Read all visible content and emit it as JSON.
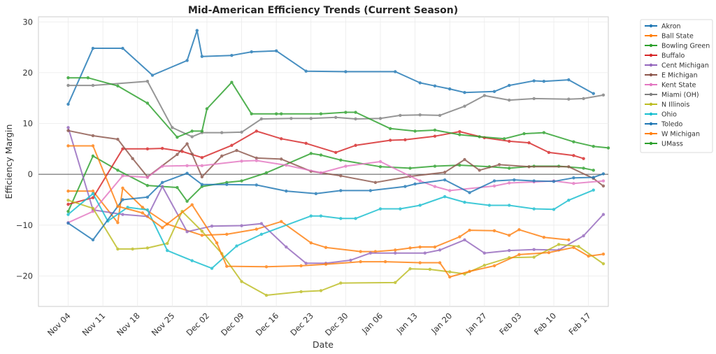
{
  "chart_data": {
    "type": "line",
    "title": "Mid-American Efficiency Trends (Current Season)",
    "xlabel": "Date",
    "ylabel": "Efficiency Margin",
    "x_type": "date",
    "x_range_days_from_nov04": [
      -6,
      109
    ],
    "x_ticks": [
      "Nov 04",
      "Nov 11",
      "Nov 18",
      "Nov 25",
      "Dec 02",
      "Dec 09",
      "Dec 16",
      "Dec 23",
      "Dec 30",
      "Jan 06",
      "Jan 13",
      "Jan 20",
      "Jan 27",
      "Feb 03",
      "Feb 10",
      "Feb 17"
    ],
    "y_ticks": [
      -20,
      -10,
      0,
      10,
      20,
      30
    ],
    "ylim": [
      -26,
      31
    ],
    "grid": true,
    "zero_line": true,
    "legend_position": "outside-top-right",
    "x_note": "x values are days since Nov 04",
    "series": [
      {
        "name": "Akron",
        "color": "#1f77b4",
        "x": [
          0,
          5,
          11,
          17,
          24,
          26,
          27,
          33,
          37,
          42,
          48,
          56,
          66,
          71,
          74,
          77,
          80,
          86,
          89,
          94,
          96,
          101,
          106
        ],
        "y": [
          13.8,
          24.8,
          24.8,
          19.5,
          22.4,
          28.3,
          23.2,
          23.4,
          24.1,
          24.3,
          20.3,
          20.2,
          20.2,
          18.0,
          17.4,
          16.8,
          16.1,
          16.3,
          17.5,
          18.4,
          18.3,
          18.6,
          15.9
        ]
      },
      {
        "name": "Ball State",
        "color": "#ff7f0e",
        "x": [
          0,
          5,
          10,
          11,
          15,
          20,
          27,
          32,
          38,
          43,
          49,
          52,
          59,
          62,
          66,
          69,
          71,
          74,
          79,
          81,
          86,
          89,
          91,
          96,
          101
        ],
        "y": [
          -3.3,
          -3.3,
          -9.5,
          -2.7,
          -6.5,
          -9.8,
          -12.0,
          -11.8,
          -10.8,
          -9.3,
          -13.5,
          -14.4,
          -15.2,
          -15.2,
          -14.9,
          -14.5,
          -14.3,
          -14.3,
          -12.3,
          -11.0,
          -11.1,
          -12.0,
          -10.9,
          -12.4,
          -12.9
        ]
      },
      {
        "name": "Bowling Green",
        "color": "#2ca02c",
        "x": [
          0,
          5,
          10,
          16,
          22,
          24,
          27,
          32,
          35,
          40,
          49,
          51,
          55,
          63,
          69,
          74,
          79,
          85,
          89,
          94,
          99,
          104,
          106
        ],
        "y": [
          -7.3,
          3.6,
          0.8,
          -2.2,
          -2.6,
          -5.3,
          -2.4,
          -1.6,
          -1.3,
          0.3,
          4.1,
          3.8,
          2.8,
          1.5,
          1.2,
          1.6,
          1.8,
          1.5,
          1.2,
          1.6,
          1.6,
          1.2,
          0.8
        ]
      },
      {
        "name": "Buffalo",
        "color": "#d62728",
        "x": [
          0,
          5,
          11,
          16,
          19,
          23,
          27,
          33,
          38,
          43,
          48,
          54,
          58,
          65,
          68,
          74,
          79,
          84,
          89,
          93,
          97,
          102,
          104
        ],
        "y": [
          -5.9,
          -4.6,
          5.0,
          5.0,
          5.1,
          4.5,
          3.3,
          5.7,
          8.5,
          7.0,
          6.1,
          4.3,
          5.7,
          6.7,
          6.8,
          7.5,
          8.4,
          7.2,
          6.5,
          6.2,
          4.3,
          3.7,
          3.1
        ]
      },
      {
        "name": "Cent Michigan",
        "color": "#9467bd",
        "x": [
          0,
          5,
          11,
          16,
          19,
          24,
          29,
          35,
          39,
          44,
          48,
          52,
          57,
          61,
          66,
          72,
          75,
          80,
          84,
          89,
          94,
          99,
          104,
          108
        ],
        "y": [
          9.2,
          -7.0,
          -7.9,
          -8.3,
          -2.4,
          -11.3,
          -10.2,
          -10.1,
          -9.7,
          -14.3,
          -17.5,
          -17.5,
          -16.9,
          -15.5,
          -15.5,
          -15.5,
          -14.9,
          -12.9,
          -15.5,
          -15.0,
          -14.8,
          -14.9,
          -12.1,
          -7.9
        ]
      },
      {
        "name": "E Michigan",
        "color": "#8c564b",
        "x": [
          0,
          5,
          10,
          13,
          16,
          22,
          24,
          25,
          27,
          31,
          34,
          38,
          43,
          49,
          55,
          62,
          69,
          76,
          80,
          83,
          87,
          93,
          101,
          106,
          108
        ],
        "y": [
          8.6,
          7.6,
          6.9,
          3.1,
          -0.5,
          3.9,
          6.0,
          4.0,
          -0.5,
          3.6,
          4.7,
          3.2,
          3.0,
          0.6,
          -0.3,
          -1.6,
          -0.4,
          0.4,
          2.9,
          0.8,
          1.9,
          1.5,
          1.5,
          -0.8,
          -2.3
        ]
      },
      {
        "name": "Kent State",
        "color": "#e377c2",
        "x": [
          0,
          5,
          11,
          16,
          19,
          24,
          27,
          35,
          38,
          44,
          51,
          56,
          63,
          71,
          74,
          77,
          86,
          89,
          94,
          98,
          102,
          108
        ],
        "y": [
          -9.5,
          -7.3,
          -0.3,
          -0.6,
          1.6,
          1.7,
          1.7,
          2.6,
          2.7,
          1.8,
          0.3,
          1.6,
          2.5,
          -1.3,
          -2.4,
          -3.2,
          -2.3,
          -1.7,
          -1.5,
          -1.3,
          -1.8,
          -1.3
        ]
      },
      {
        "name": "Miami (OH)",
        "color": "#7f7f7f",
        "x": [
          0,
          5,
          16,
          21,
          25,
          27,
          31,
          35,
          39,
          45,
          49,
          54,
          58,
          63,
          67,
          71,
          75,
          80,
          84,
          89,
          94,
          101,
          104,
          108
        ],
        "y": [
          17.5,
          17.5,
          18.3,
          9.2,
          7.4,
          8.2,
          8.2,
          8.3,
          10.9,
          11.0,
          11.0,
          11.2,
          10.9,
          11.0,
          11.6,
          11.7,
          11.6,
          13.4,
          15.5,
          14.6,
          14.9,
          14.8,
          14.9,
          15.6
        ]
      },
      {
        "name": "N Illinois",
        "color": "#bcbd22",
        "x": [
          0,
          5,
          10,
          13,
          16,
          20,
          23,
          27,
          31,
          35,
          40,
          47,
          51,
          55,
          66,
          69,
          73,
          77,
          80,
          84,
          89,
          94,
          99,
          103,
          108
        ],
        "y": [
          -5.1,
          -6.7,
          -14.7,
          -14.7,
          -14.5,
          -13.6,
          -7.3,
          -11.2,
          -15.6,
          -21.1,
          -23.8,
          -23.1,
          -22.9,
          -21.4,
          -21.3,
          -18.6,
          -18.7,
          -19.2,
          -19.6,
          -17.9,
          -16.4,
          -16.3,
          -13.8,
          -14.2,
          -17.6
        ]
      },
      {
        "name": "Ohio",
        "color": "#17becf",
        "x": [
          0,
          5,
          8,
          12,
          16,
          20,
          25,
          29,
          34,
          39,
          49,
          51,
          55,
          58,
          63,
          67,
          71,
          76,
          80,
          85,
          89,
          94,
          98,
          101,
          106
        ],
        "y": [
          -7.9,
          -3.8,
          -9.2,
          -6.5,
          -7.0,
          -15.0,
          -17.0,
          -18.5,
          -14.1,
          -11.8,
          -8.2,
          -8.2,
          -8.7,
          -8.7,
          -6.8,
          -6.8,
          -6.1,
          -4.4,
          -5.5,
          -6.1,
          -6.1,
          -6.8,
          -6.9,
          -5.1,
          -3.1
        ]
      },
      {
        "name": "Toledo",
        "color": "#1f77b4",
        "x": [
          0,
          5,
          11,
          16,
          19,
          24,
          27,
          32,
          38,
          44,
          50,
          55,
          61,
          68,
          70,
          76,
          81,
          86,
          90,
          94,
          98,
          102,
          106,
          108
        ],
        "y": [
          -9.6,
          -12.9,
          -5.0,
          -4.5,
          -1.6,
          0.2,
          -2.0,
          -2.0,
          -2.1,
          -3.3,
          -3.8,
          -3.2,
          -3.2,
          -2.4,
          -1.9,
          -1.1,
          -3.6,
          -1.3,
          -1.1,
          -1.3,
          -1.4,
          -0.7,
          -0.6,
          0.1
        ]
      },
      {
        "name": "W Michigan",
        "color": "#ff7f0e",
        "x": [
          0,
          5,
          10,
          15,
          19,
          25,
          30,
          32,
          40,
          47,
          52,
          59,
          64,
          71,
          75,
          77,
          81,
          86,
          91,
          97,
          102,
          105,
          108
        ],
        "y": [
          5.6,
          5.6,
          -6.3,
          -7.6,
          -10.5,
          -6.0,
          -13.5,
          -18.1,
          -18.2,
          -18.0,
          -17.7,
          -17.2,
          -17.2,
          -17.4,
          -17.4,
          -20.2,
          -19.1,
          -18.0,
          -15.8,
          -15.4,
          -14.4,
          -16.1,
          -15.7
        ]
      },
      {
        "name": "UMass",
        "color": "#2ca02c",
        "x": [
          0,
          4,
          10,
          16,
          22,
          25,
          27,
          28,
          33,
          37,
          42,
          43,
          51,
          56,
          58,
          65,
          70,
          74,
          79,
          83,
          88,
          92,
          96,
          102,
          106,
          109
        ],
        "y": [
          19.0,
          19.0,
          17.4,
          14.0,
          7.3,
          8.5,
          8.5,
          12.9,
          18.1,
          11.9,
          11.9,
          11.9,
          11.9,
          12.2,
          12.2,
          9.0,
          8.5,
          8.7,
          7.8,
          7.4,
          7.0,
          8.0,
          8.2,
          6.4,
          5.5,
          5.2
        ]
      }
    ]
  }
}
